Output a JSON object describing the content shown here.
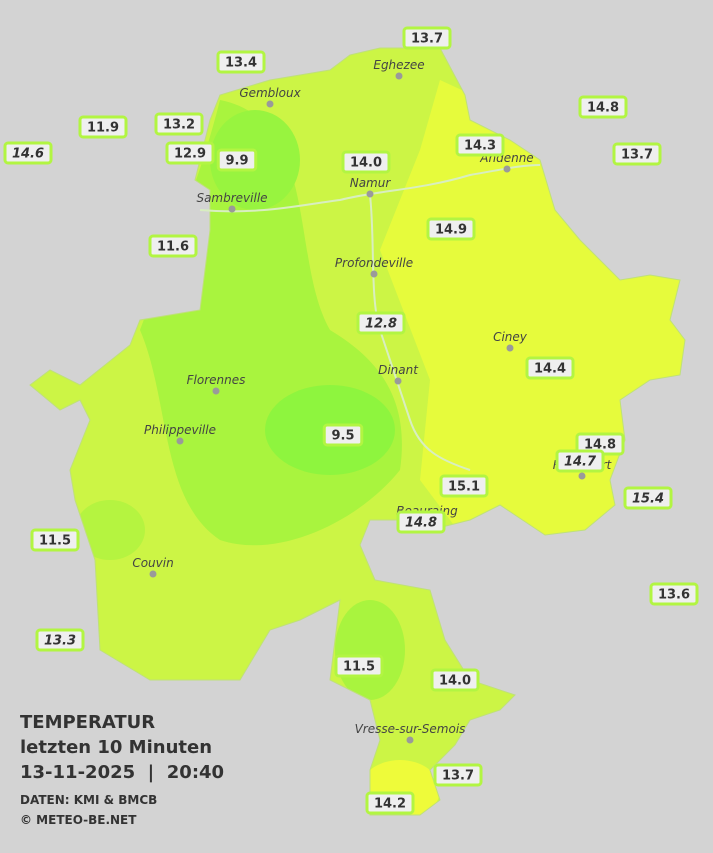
{
  "map": {
    "cities": [
      "Eghezee",
      "Gembloux",
      "Andenne",
      "Namur",
      "Sambreville",
      "Profondeville",
      "Ciney",
      "Dinant",
      "Florennes",
      "Philippeville",
      "Couvin",
      "Vresse-sur-Semois",
      "Rochefort",
      "Beauraing"
    ],
    "stations": [
      {
        "label": "13.7",
        "italic": false
      },
      {
        "label": "13.4",
        "italic": false
      },
      {
        "label": "14.8",
        "italic": false
      },
      {
        "label": "11.9",
        "italic": false
      },
      {
        "label": "13.2",
        "italic": false
      },
      {
        "label": "14.6",
        "italic": true
      },
      {
        "label": "12.9",
        "italic": false
      },
      {
        "label": "9.9",
        "italic": false
      },
      {
        "label": "14.3",
        "italic": false
      },
      {
        "label": "13.7",
        "italic": false
      },
      {
        "label": "14.0",
        "italic": false
      },
      {
        "label": "14.9",
        "italic": false
      },
      {
        "label": "11.6",
        "italic": false
      },
      {
        "label": "12.8",
        "italic": true
      },
      {
        "label": "14.4",
        "italic": false
      },
      {
        "label": "9.5",
        "italic": false
      },
      {
        "label": "14.8",
        "italic": false
      },
      {
        "label": "14.7",
        "italic": true
      },
      {
        "label": "15.1",
        "italic": false
      },
      {
        "label": "15.4",
        "italic": true
      },
      {
        "label": "14.8",
        "italic": true
      },
      {
        "label": "11.5",
        "italic": false
      },
      {
        "label": "13.6",
        "italic": false
      },
      {
        "label": "13.3",
        "italic": true
      },
      {
        "label": "11.5",
        "italic": false
      },
      {
        "label": "14.0",
        "italic": false
      },
      {
        "label": "13.7",
        "italic": false
      },
      {
        "label": "14.2",
        "italic": false
      }
    ],
    "info": {
      "title": "TEMPERATUR",
      "period": "letzten 10 Minuten",
      "datetime": "13-11-2025  |  20:40",
      "source": "DATEN: KMI & BMCB",
      "copyright": "© METEO-BE.NET"
    }
  }
}
